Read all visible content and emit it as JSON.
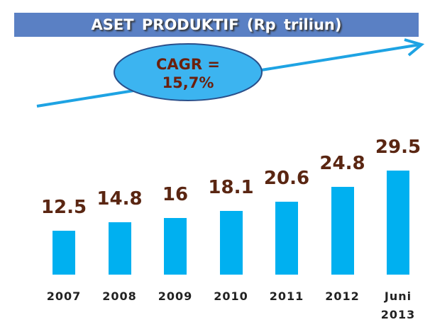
{
  "chart_data": {
    "type": "bar",
    "title": "ASET  PRODUKTIF  (Rp triliun)",
    "annotation": "CAGR = 15,7%",
    "categories": [
      "2007",
      "2008",
      "2009",
      "2010",
      "2011",
      "2012",
      "Juni 2013"
    ],
    "values": [
      12.5,
      14.8,
      16,
      18.1,
      20.6,
      24.8,
      29.5
    ],
    "color": "#00b0f0"
  }
}
